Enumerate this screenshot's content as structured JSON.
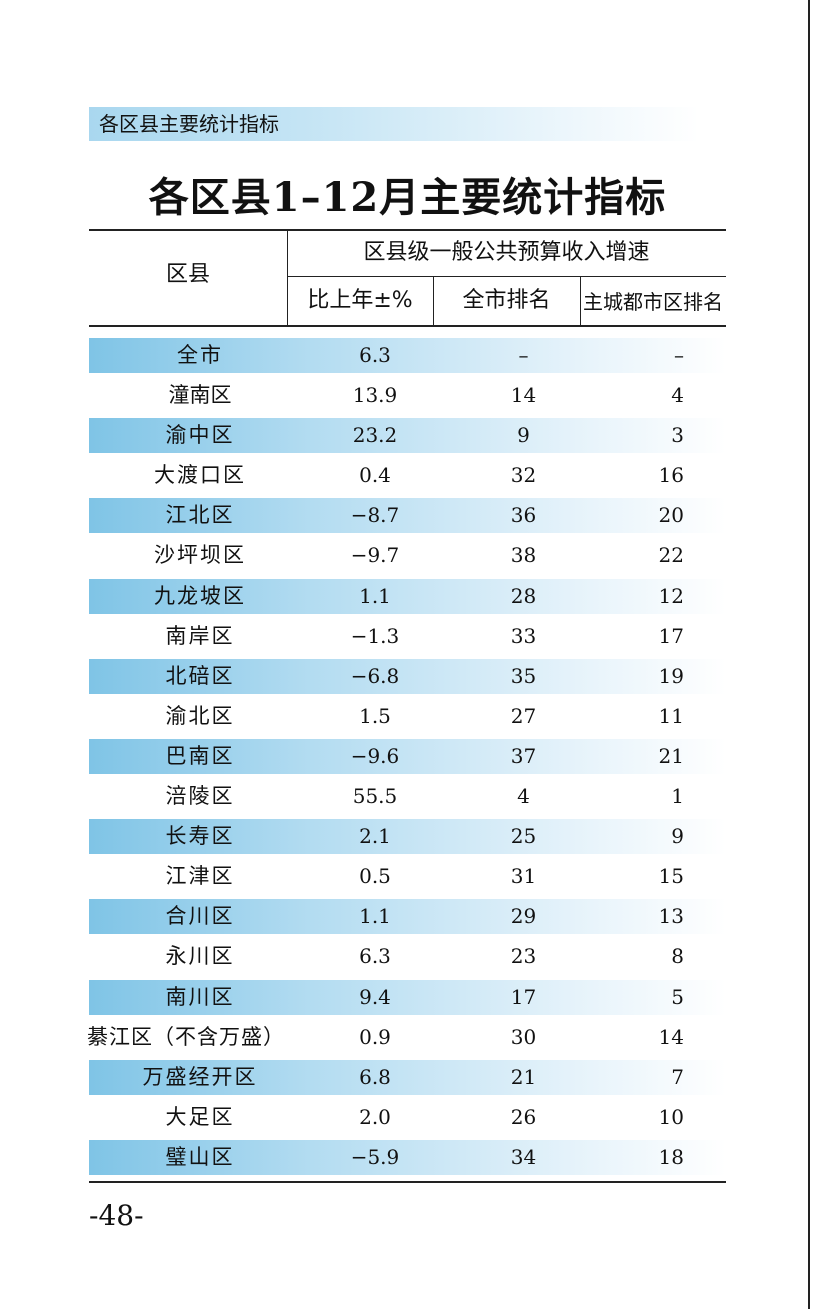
{
  "section_label": "各区县主要统计指标",
  "title": "各区县1–12月主要统计指标",
  "table": {
    "header": {
      "district": "区县",
      "group": "区县级一般公共预算收入增速",
      "col_yoy": "比上年±%",
      "col_city_rank": "全市排名",
      "col_core_rank": "主城都市区排名"
    },
    "rows": [
      {
        "name": "全市",
        "yoy": "6.3",
        "city_rank": "–",
        "core_rank": "–"
      },
      {
        "name": "潼南区",
        "yoy": "13.9",
        "city_rank": "14",
        "core_rank": "4"
      },
      {
        "name": "渝中区",
        "yoy": "23.2",
        "city_rank": "9",
        "core_rank": "3"
      },
      {
        "name": "大渡口区",
        "yoy": "0.4",
        "city_rank": "32",
        "core_rank": "16"
      },
      {
        "name": "江北区",
        "yoy": "−8.7",
        "city_rank": "36",
        "core_rank": "20"
      },
      {
        "name": "沙坪坝区",
        "yoy": "−9.7",
        "city_rank": "38",
        "core_rank": "22"
      },
      {
        "name": "九龙坡区",
        "yoy": "1.1",
        "city_rank": "28",
        "core_rank": "12"
      },
      {
        "name": "南岸区",
        "yoy": "−1.3",
        "city_rank": "33",
        "core_rank": "17"
      },
      {
        "name": "北碚区",
        "yoy": "−6.8",
        "city_rank": "35",
        "core_rank": "19"
      },
      {
        "name": "渝北区",
        "yoy": "1.5",
        "city_rank": "27",
        "core_rank": "11"
      },
      {
        "name": "巴南区",
        "yoy": "−9.6",
        "city_rank": "37",
        "core_rank": "21"
      },
      {
        "name": "涪陵区",
        "yoy": "55.5",
        "city_rank": "4",
        "core_rank": "1"
      },
      {
        "name": "长寿区",
        "yoy": "2.1",
        "city_rank": "25",
        "core_rank": "9"
      },
      {
        "name": "江津区",
        "yoy": "0.5",
        "city_rank": "31",
        "core_rank": "15"
      },
      {
        "name": "合川区",
        "yoy": "1.1",
        "city_rank": "29",
        "core_rank": "13"
      },
      {
        "name": "永川区",
        "yoy": "6.3",
        "city_rank": "23",
        "core_rank": "8"
      },
      {
        "name": "南川区",
        "yoy": "9.4",
        "city_rank": "17",
        "core_rank": "5"
      },
      {
        "name": "綦江区（不含万盛）",
        "yoy": "0.9",
        "city_rank": "30",
        "core_rank": "14"
      },
      {
        "name": "万盛经开区",
        "yoy": "6.8",
        "city_rank": "21",
        "core_rank": "7"
      },
      {
        "name": "大足区",
        "yoy": "2.0",
        "city_rank": "26",
        "core_rank": "10"
      },
      {
        "name": "璧山区",
        "yoy": "−5.9",
        "city_rank": "34",
        "core_rank": "18"
      }
    ]
  },
  "page_number": "-48-",
  "colors": {
    "band": "#7fc4e6",
    "section_band": "#a9d7ef",
    "rule": "#222222"
  }
}
